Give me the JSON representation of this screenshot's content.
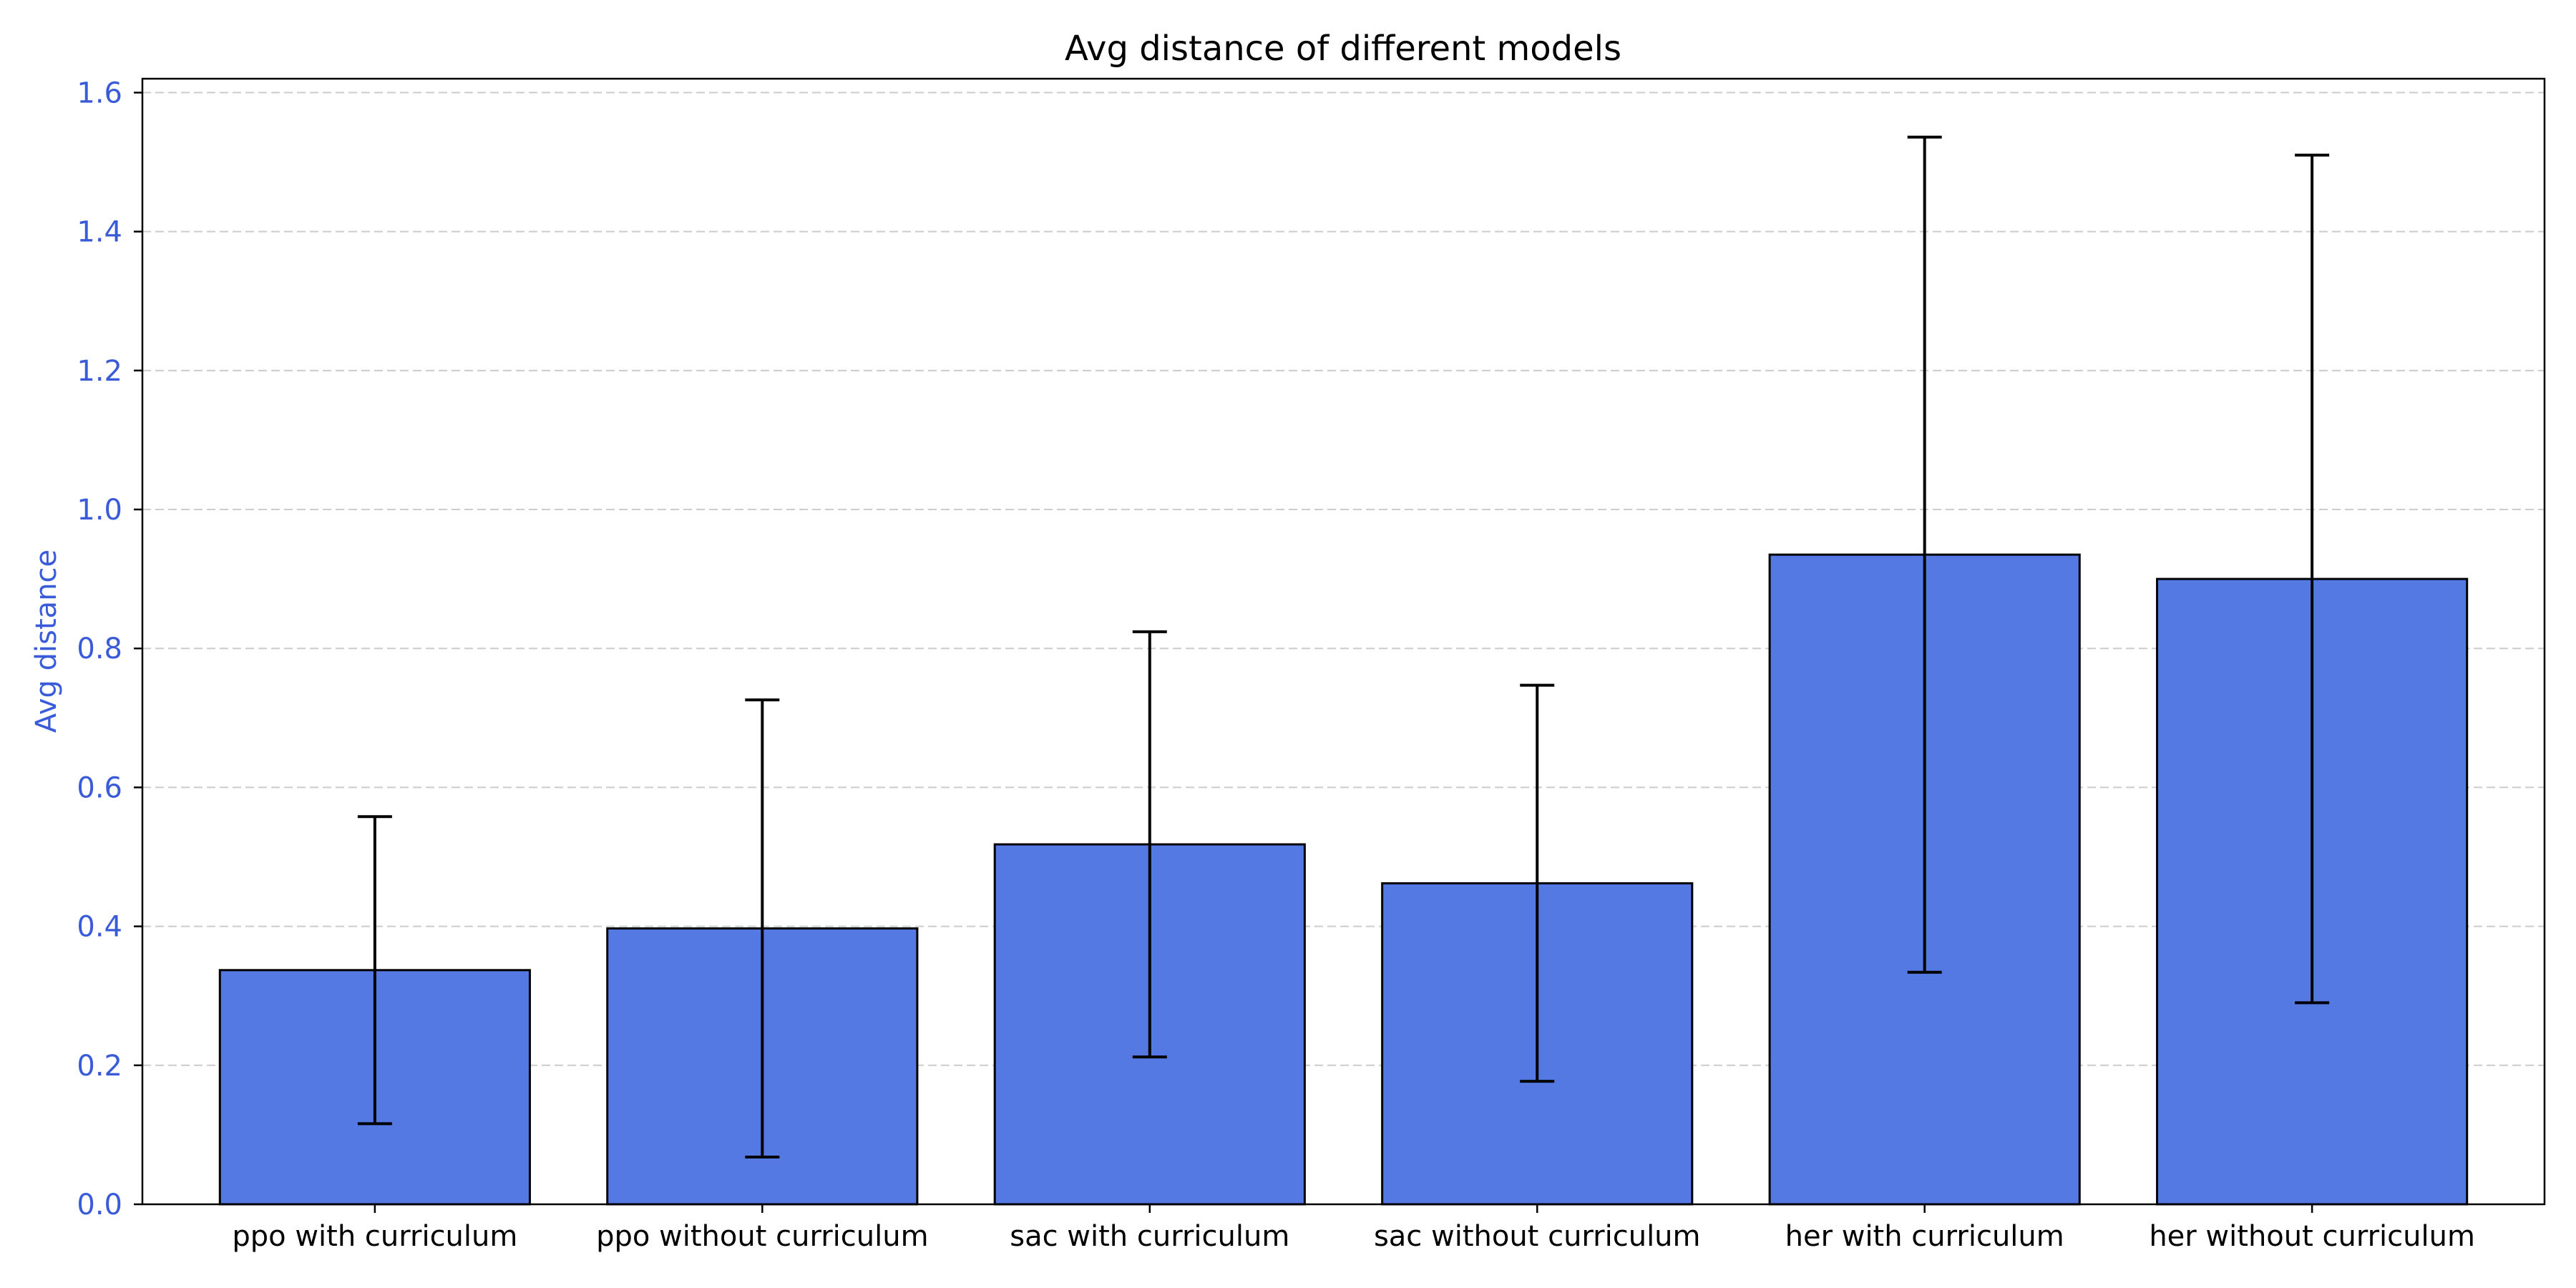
{
  "chart_data": {
    "type": "bar",
    "title": "Avg distance of different models",
    "xlabel": "",
    "ylabel": "Avg distance",
    "categories": [
      "ppo with curriculum",
      "ppo without curriculum",
      "sac with curriculum",
      "sac without curriculum",
      "her with curriculum",
      "her without curriculum"
    ],
    "values": [
      0.337,
      0.397,
      0.518,
      0.462,
      0.935,
      0.9
    ],
    "error": [
      0.221,
      0.329,
      0.306,
      0.285,
      0.601,
      0.61
    ],
    "ylim": [
      0,
      1.62
    ],
    "yticks": [
      "0.0",
      "0.2",
      "0.4",
      "0.6",
      "0.8",
      "1.0",
      "1.2",
      "1.4",
      "1.6"
    ],
    "grid": "y-dashed",
    "colors": {
      "bar": "#5579e3",
      "bar_edge": "#000000",
      "error_bar": "#000000",
      "y_axis": "#3a5bd9",
      "grid": "#cccccc"
    }
  }
}
